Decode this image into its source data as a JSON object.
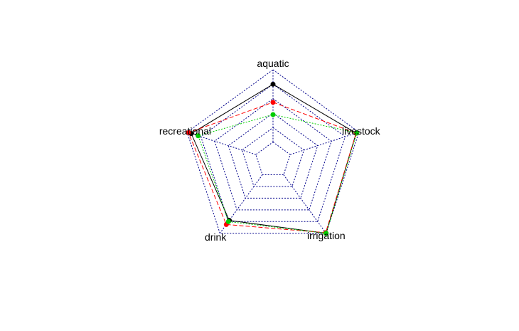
{
  "chart_data": {
    "type": "radar",
    "axes": [
      "aquatic",
      "livestock",
      "irrigation",
      "drink",
      "recreational"
    ],
    "range": [
      0,
      1
    ],
    "grid_levels": 5,
    "grid_color": "#00008b",
    "series": [
      {
        "values": [
          0.8,
          0.96,
          1.0,
          0.78,
          0.94
        ],
        "color": "#000000",
        "line": "solid"
      },
      {
        "values": [
          0.55,
          0.96,
          0.99,
          0.85,
          0.98
        ],
        "color": "#ff0000",
        "line": "dashed"
      },
      {
        "values": [
          0.38,
          0.97,
          1.0,
          0.8,
          0.84
        ],
        "color": "#00cd00",
        "line": "dotted"
      }
    ]
  }
}
